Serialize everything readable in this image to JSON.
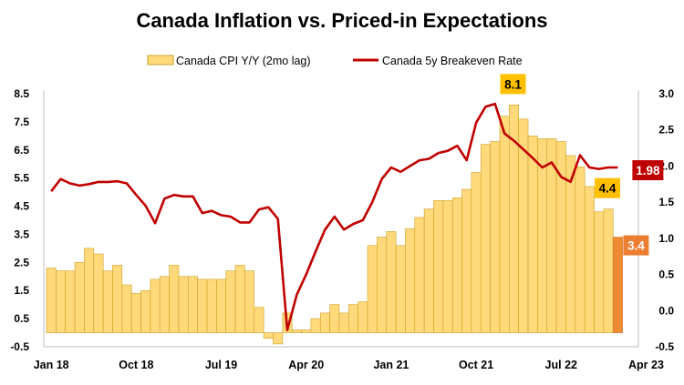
{
  "chart_data": {
    "type": "bar+line",
    "title": "Canada Inflation vs. Priced-in Expectations",
    "legend": {
      "position": "top",
      "bar_label": "Canada CPI Y/Y (2mo lag)",
      "line_label": "Canada 5y Breakeven Rate"
    },
    "x_tick_labels": [
      "Jan 18",
      "Oct 18",
      "Jul 19",
      "Apr 20",
      "Jan 21",
      "Oct 21",
      "Jul 22",
      "Apr 23"
    ],
    "y_left": {
      "min": -0.5,
      "max": 8.5,
      "ticks": [
        "-0.5",
        "0.5",
        "1.5",
        "2.5",
        "3.5",
        "4.5",
        "5.5",
        "6.5",
        "7.5",
        "8.5"
      ]
    },
    "y_right": {
      "min": -0.5,
      "max": 3.0,
      "ticks": [
        "-0.5",
        "0.0",
        "0.5",
        "1.0",
        "1.5",
        "2.0",
        "2.5",
        "3.0"
      ]
    },
    "grid": false,
    "colors": {
      "bar": "#FFD97A",
      "bar_edge": "#C9A227",
      "bar_highlight": "#ED8B35",
      "line": "#C00000",
      "callout_yellow": "#FFC000",
      "callout_orange": "#ED7D31",
      "callout_red": "#C00000"
    },
    "series": [
      {
        "name": "Canada CPI Y/Y (2mo lag)",
        "axis": "left",
        "values": [
          2.3,
          2.2,
          2.2,
          2.5,
          3.0,
          2.8,
          2.2,
          2.4,
          1.7,
          1.4,
          1.5,
          1.9,
          2.0,
          2.4,
          2.0,
          2.0,
          1.9,
          1.9,
          1.9,
          2.2,
          2.4,
          2.2,
          0.9,
          -0.2,
          -0.4,
          0.7,
          0.1,
          0.1,
          0.5,
          0.7,
          1.0,
          0.7,
          1.0,
          1.1,
          3.1,
          3.4,
          3.6,
          3.1,
          3.7,
          4.1,
          4.4,
          4.7,
          4.7,
          4.8,
          5.1,
          5.7,
          6.7,
          6.8,
          7.7,
          8.1,
          7.6,
          7.0,
          6.9,
          6.9,
          6.8,
          6.3,
          5.9,
          5.2,
          4.3,
          4.4,
          3.4
        ]
      },
      {
        "name": "Canada 5y Breakeven Rate",
        "axis": "right",
        "values": [
          1.65,
          1.82,
          1.76,
          1.73,
          1.75,
          1.78,
          1.78,
          1.79,
          1.76,
          1.6,
          1.45,
          1.21,
          1.55,
          1.6,
          1.58,
          1.58,
          1.35,
          1.38,
          1.32,
          1.3,
          1.22,
          1.22,
          1.4,
          1.43,
          1.27,
          -0.27,
          0.22,
          0.5,
          0.82,
          1.12,
          1.3,
          1.12,
          1.2,
          1.25,
          1.5,
          1.82,
          1.98,
          1.92,
          2.0,
          2.08,
          2.1,
          2.18,
          2.21,
          2.28,
          2.08,
          2.6,
          2.82,
          2.86,
          2.45,
          2.35,
          2.23,
          2.11,
          1.98,
          2.05,
          1.85,
          1.78,
          2.15,
          1.98,
          1.96,
          1.98,
          1.98
        ]
      }
    ],
    "annotations": [
      {
        "text": "8.1",
        "series": "Canada CPI Y/Y (2mo lag)",
        "index": 49,
        "style": "yellow"
      },
      {
        "text": "4.4",
        "series": "Canada CPI Y/Y (2mo lag)",
        "index": 59,
        "style": "yellow"
      },
      {
        "text": "3.4",
        "series": "Canada CPI Y/Y (2mo lag)",
        "index": 60,
        "style": "orange"
      },
      {
        "text": "1.98",
        "series": "Canada 5y Breakeven Rate",
        "index": 60,
        "style": "red"
      }
    ]
  }
}
